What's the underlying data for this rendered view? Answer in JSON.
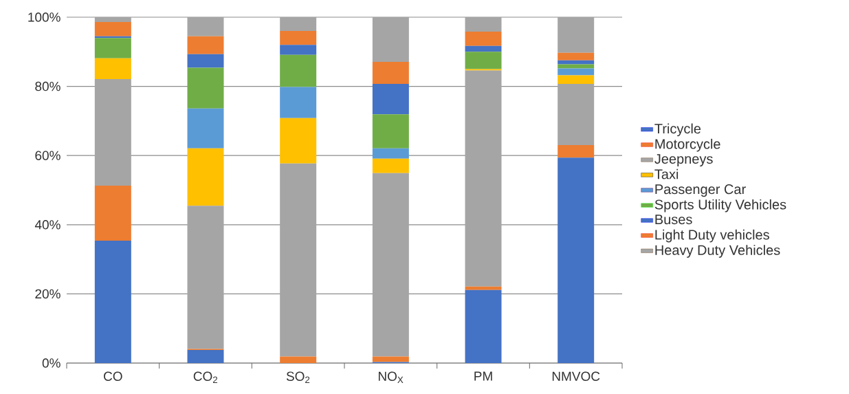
{
  "chart_data": {
    "type": "bar",
    "stacked": true,
    "categories": [
      "CO",
      "CO$_{2}$",
      "SO$_{2}$",
      "NO$_{X}$",
      "PM",
      "NMVOC"
    ],
    "series": [
      {
        "name": "Tricycle",
        "color": "#4472c4",
        "values": [
          35.4,
          3.8,
          0,
          0.3,
          21.1,
          59.4
        ]
      },
      {
        "name": "Motorcycle",
        "color": "#ed7d31",
        "values": [
          15.9,
          0.3,
          1.9,
          1.6,
          1.0,
          3.6
        ]
      },
      {
        "name": "Jeepneys",
        "color": "#a5a5a5",
        "values": [
          30.8,
          41.4,
          55.8,
          53.0,
          62.5,
          17.7
        ]
      },
      {
        "name": "Taxi",
        "color": "#ffc000",
        "values": [
          6.0,
          16.6,
          13.1,
          4.2,
          0.4,
          2.5
        ]
      },
      {
        "name": "Passenger Car",
        "color": "#5b9bd5",
        "values": [
          0,
          11.5,
          9.0,
          3.0,
          0,
          2.0
        ]
      },
      {
        "name": "Sports Utility Vehicles",
        "color": "#70ad47",
        "values": [
          5.9,
          11.8,
          9.3,
          9.8,
          5.0,
          1.2
        ]
      },
      {
        "name": "Buses",
        "color": "#4472c4",
        "values": [
          0.5,
          3.9,
          2.9,
          8.8,
          1.7,
          1.1
        ]
      },
      {
        "name": "Light Duty vehicles",
        "color": "#ed7d31",
        "values": [
          4.1,
          5.2,
          4.0,
          6.4,
          4.1,
          2.2
        ]
      },
      {
        "name": "Heavy Duty Vehicles",
        "color": "#a5a5a5",
        "values": [
          1.4,
          5.5,
          4.0,
          12.9,
          4.2,
          10.3
        ]
      }
    ],
    "ylim": [
      0,
      100
    ],
    "yticks": [
      {
        "value": 0,
        "label": "0%"
      },
      {
        "value": 20,
        "label": "20%"
      },
      {
        "value": 40,
        "label": "40%"
      },
      {
        "value": 60,
        "label": "60%"
      },
      {
        "value": 80,
        "label": "80%"
      },
      {
        "value": 100,
        "label": "100%"
      }
    ],
    "grid": "y",
    "legend": "right"
  }
}
